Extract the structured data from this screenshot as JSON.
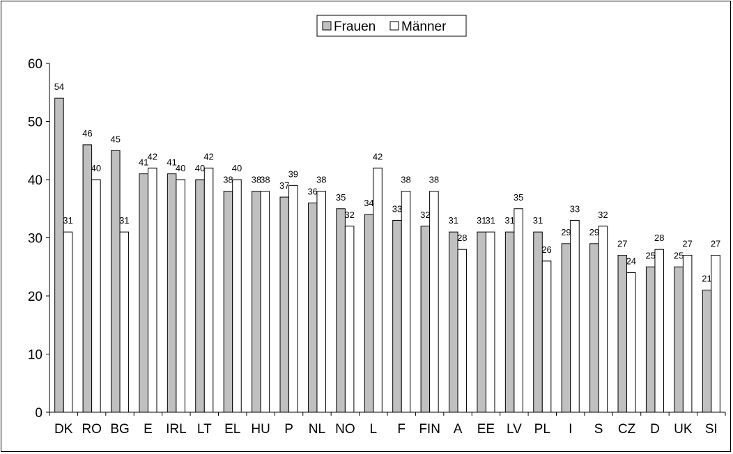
{
  "chart_data": {
    "type": "bar",
    "title": "",
    "xlabel": "",
    "ylabel": "",
    "ylim": [
      0,
      60
    ],
    "yticks": [
      0,
      10,
      20,
      30,
      40,
      50,
      60
    ],
    "grid": false,
    "legend_position": "top-center",
    "categories": [
      "DK",
      "RO",
      "BG",
      "E",
      "IRL",
      "LT",
      "EL",
      "HU",
      "P",
      "NL",
      "NO",
      "L",
      "F",
      "FIN",
      "A",
      "EE",
      "LV",
      "PL",
      "I",
      "S",
      "CZ",
      "D",
      "UK",
      "SI"
    ],
    "series": [
      {
        "name": "Frauen",
        "color": "#c0c0c0",
        "values": [
          54,
          46,
          45,
          41,
          41,
          40,
          38,
          38,
          37,
          36,
          35,
          34,
          33,
          32,
          31,
          31,
          31,
          31,
          29,
          29,
          27,
          25,
          25,
          21
        ]
      },
      {
        "name": "Männer",
        "color": "#ffffff",
        "values": [
          31,
          40,
          31,
          42,
          40,
          42,
          40,
          38,
          39,
          38,
          32,
          42,
          38,
          38,
          28,
          31,
          35,
          26,
          33,
          32,
          24,
          28,
          27,
          27
        ]
      }
    ]
  }
}
